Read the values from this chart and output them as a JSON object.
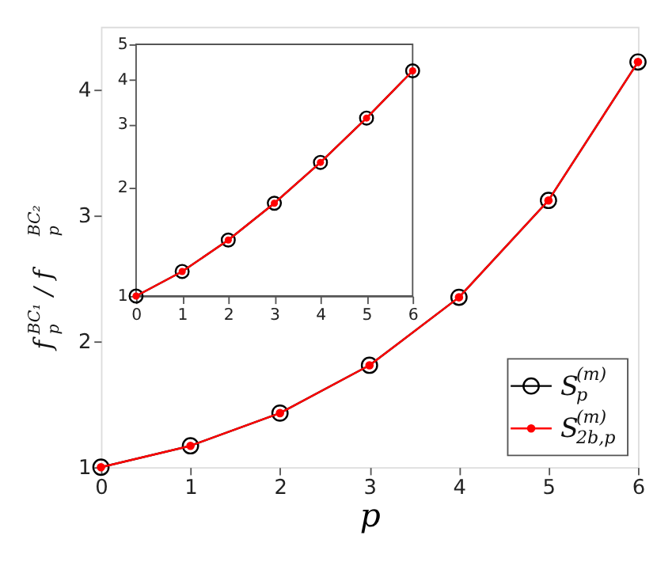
{
  "chart_data": [
    {
      "type": "line",
      "xlabel": "p",
      "ylabel": "f$_{p}$$^{BC₁}$ / f$_{p}$$^{BC₂}$",
      "x": [
        0,
        1,
        2,
        3,
        4,
        5,
        6
      ],
      "xlim": [
        0,
        6
      ],
      "xticks": [
        0,
        1,
        2,
        3,
        4,
        5,
        6
      ],
      "ylim": [
        1,
        4.5
      ],
      "yticks": [
        1,
        2,
        3,
        4
      ],
      "grid": false,
      "legend": "bottom right",
      "marker": "circle",
      "line_style": "solid",
      "series": [
        {
          "name": "S$^{(m)}$$_{p}$",
          "color": "#000000",
          "values": [
            1,
            1.17,
            1.43,
            1.81,
            2.35,
            3.12,
            4.22
          ]
        },
        {
          "name": "S$^{(m)}$$_{2b,p}$",
          "color": "#ff0000",
          "values": [
            1,
            1.17,
            1.43,
            1.81,
            2.35,
            3.12,
            4.22
          ]
        }
      ]
    },
    {
      "type": "line",
      "x": [
        0,
        1,
        2,
        3,
        4,
        5,
        6
      ],
      "xlim": [
        0,
        6
      ],
      "xticks": [
        0,
        1,
        2,
        3,
        4,
        5,
        6
      ],
      "ylim": [
        1,
        5
      ],
      "yticks": [
        1,
        2,
        3,
        4,
        5
      ],
      "log": "y",
      "grid": false,
      "marker": "circle",
      "line_style": "solid",
      "series": [
        {
          "color": "#000000",
          "values": [
            1,
            1.17,
            1.43,
            1.81,
            2.35,
            3.12,
            4.22
          ]
        },
        {
          "color": "#ff0000",
          "values": [
            1,
            1.17,
            1.43,
            1.81,
            2.35,
            3.12,
            4.22
          ]
        }
      ]
    }
  ]
}
